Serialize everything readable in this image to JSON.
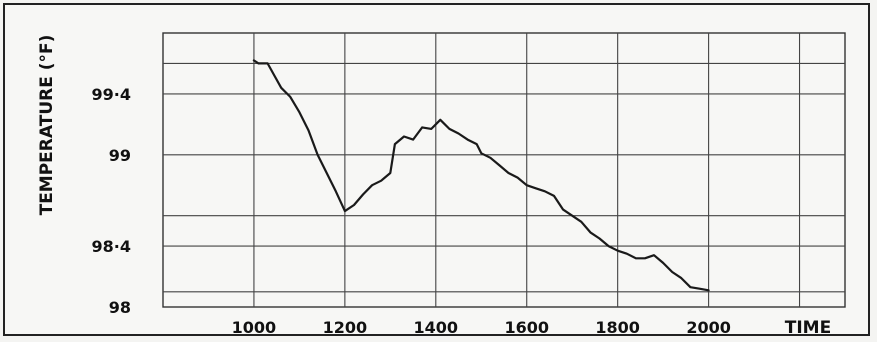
{
  "chart_data": {
    "type": "line",
    "title": "",
    "xlabel": "TIME",
    "ylabel": "TEMPERATURE (°F)",
    "xlim": [
      800,
      2300
    ],
    "ylim": [
      98,
      99.8
    ],
    "grid": true,
    "x_ticks": [
      1000,
      1200,
      1400,
      1600,
      1800,
      2000
    ],
    "x_tick_labels": [
      "1000",
      "1200",
      "1400",
      "1600",
      "1800",
      "2000"
    ],
    "y_ticks": [
      98,
      98.4,
      99,
      99.4
    ],
    "y_tick_labels": [
      "98",
      "98·4",
      "99",
      "99·4"
    ],
    "y_gridlines": [
      98.1,
      98.4,
      98.6,
      99,
      99.4,
      99.6
    ],
    "series": [
      {
        "name": "",
        "color": "#1a1a1a",
        "x": [
          1000,
          1010,
          1030,
          1045,
          1060,
          1080,
          1100,
          1120,
          1140,
          1160,
          1180,
          1200,
          1220,
          1240,
          1260,
          1280,
          1300,
          1310,
          1330,
          1350,
          1370,
          1390,
          1410,
          1430,
          1450,
          1470,
          1490,
          1500,
          1520,
          1540,
          1560,
          1580,
          1600,
          1620,
          1640,
          1660,
          1680,
          1700,
          1720,
          1740,
          1760,
          1780,
          1800,
          1820,
          1840,
          1860,
          1880,
          1900,
          1920,
          1940,
          1960,
          1980,
          2000
        ],
        "y": [
          99.62,
          99.6,
          99.6,
          99.52,
          99.44,
          99.38,
          99.28,
          99.16,
          99.0,
          98.88,
          98.76,
          98.63,
          98.67,
          98.74,
          98.8,
          98.83,
          98.88,
          99.07,
          99.12,
          99.1,
          99.18,
          99.17,
          99.23,
          99.17,
          99.14,
          99.1,
          99.07,
          99.01,
          98.98,
          98.93,
          98.88,
          98.85,
          98.8,
          98.78,
          98.76,
          98.73,
          98.64,
          98.6,
          98.56,
          98.49,
          98.45,
          98.4,
          98.37,
          98.35,
          98.32,
          98.32,
          98.34,
          98.29,
          98.23,
          98.19,
          98.13,
          98.12,
          98.11
        ]
      }
    ]
  }
}
